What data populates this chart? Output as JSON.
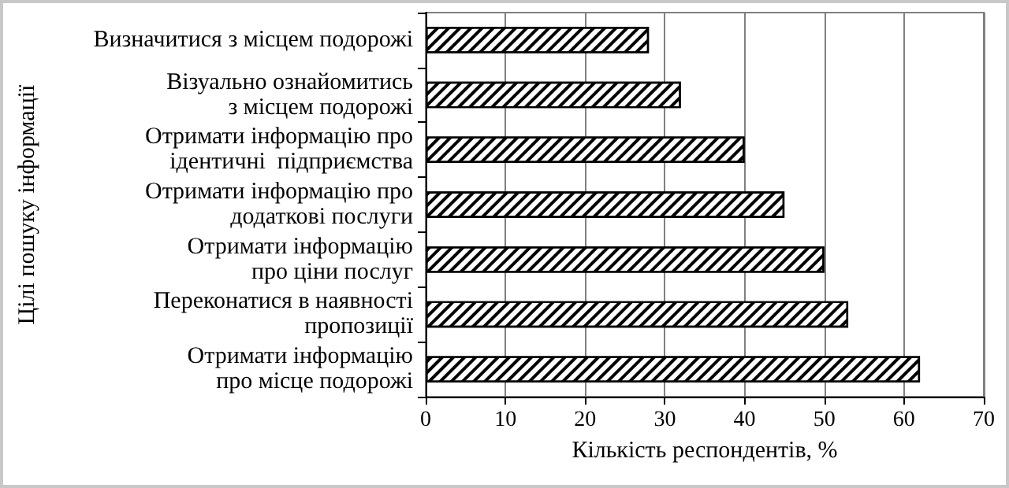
{
  "chart_data": {
    "type": "bar",
    "orientation": "horizontal",
    "categories": [
      "Визначитися з місцем подорожі",
      "Візуально ознайомитись\nз місцем подорожі",
      "Отримати інформацію про\nідентичні  підприємства",
      "Отримати інформацію про\nдодаткові послуги",
      "Отримати інформацію\nпро ціни послуг",
      "Переконатися в наявності\nпропозиції",
      "Отримати інформацію\nпро місце подорожі"
    ],
    "values": [
      28,
      32,
      40,
      45,
      50,
      53,
      62
    ],
    "color": "#000000",
    "xlabel": "Кількість респондентів, %",
    "ylabel": "Цілі пошуку інформації",
    "xlim": [
      0,
      70
    ],
    "xticks": [
      0,
      10,
      20,
      30,
      40,
      50,
      60,
      70
    ],
    "grid": "x"
  }
}
